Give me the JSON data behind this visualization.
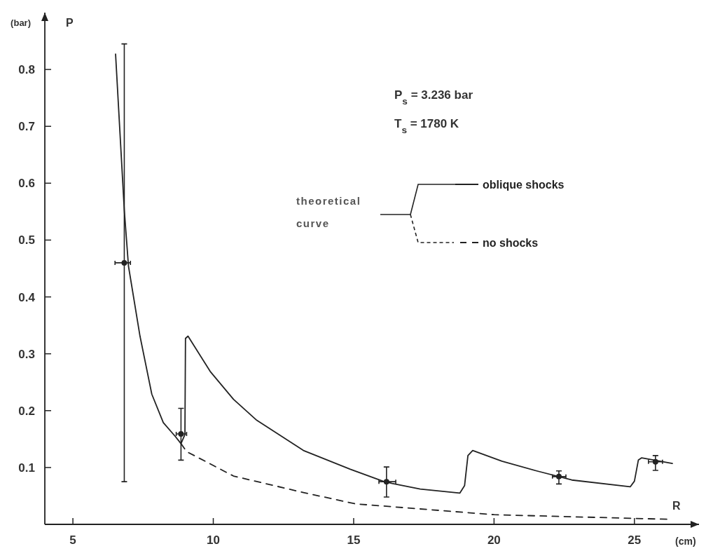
{
  "chart_data": {
    "type": "line",
    "xlabel": "R",
    "ylabel": "P",
    "legend_title": "theoretical curve",
    "legend": "top right",
    "xlim": [
      4,
      27.3
    ],
    "ylim": [
      0,
      0.9
    ],
    "xticks": [
      5,
      10,
      15,
      20,
      25
    ],
    "yticks": [
      0.1,
      0.2,
      0.3,
      0.4,
      0.5,
      0.6,
      0.7,
      0.8
    ],
    "grid": false,
    "annotations": [
      "P$_{s}$ = 3.236 bar",
      "T$_{s}$ = 1780  K",
      "(bar)",
      "(cm)"
    ],
    "series": [
      {
        "name": "oblique shocks",
        "color": "#222222",
        "line_style": "solid",
        "x": [
          6.52,
          6.83,
          6.98,
          7.39,
          7.81,
          8.22,
          8.64,
          8.85,
          8.99,
          9.01,
          9.1,
          9.89,
          10.72,
          11.55,
          13.21,
          14.88,
          16.04,
          16.37,
          17.37,
          18.78,
          18.95,
          19.07,
          19.24,
          20.28,
          21.52,
          22.77,
          24.85,
          25.0,
          25.14,
          25.26,
          26.35
        ],
        "values": [
          0.827,
          0.553,
          0.454,
          0.331,
          0.229,
          0.179,
          0.155,
          0.142,
          0.158,
          0.327,
          0.331,
          0.269,
          0.22,
          0.183,
          0.13,
          0.097,
          0.076,
          0.072,
          0.062,
          0.055,
          0.068,
          0.121,
          0.13,
          0.111,
          0.094,
          0.078,
          0.066,
          0.076,
          0.113,
          0.117,
          0.107
        ]
      },
      {
        "name": "no shocks",
        "color": "#222222",
        "line_style": "dashed",
        "x": [
          8.85,
          9.05,
          10.72,
          13.21,
          15.07,
          20.0,
          26.15
        ],
        "values": [
          0.142,
          0.128,
          0.085,
          0.056,
          0.036,
          0.017,
          0.009
        ]
      },
      {
        "type": "scatter",
        "color": "#222222",
        "marker": "circle",
        "x": [
          6.83,
          8.85,
          16.17,
          22.31,
          25.75
        ],
        "values": [
          0.46,
          0.159,
          0.075,
          0.084,
          0.11
        ],
        "errors": [
          [
            0.075,
            0.845
          ],
          [
            0.113,
            0.204
          ],
          [
            0.048,
            0.101
          ],
          [
            0.071,
            0.094
          ],
          [
            0.095,
            0.121
          ]
        ],
        "xerrors": [
          [
            6.5,
            7.05
          ],
          [
            8.68,
            9.05
          ],
          [
            15.9,
            16.5
          ],
          [
            22.08,
            22.56
          ],
          [
            25.5,
            26.0
          ]
        ]
      }
    ]
  }
}
